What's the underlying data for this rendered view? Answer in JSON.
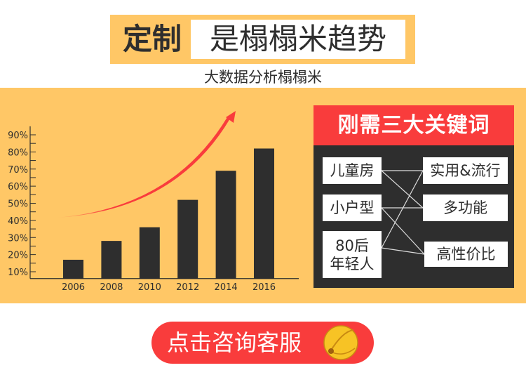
{
  "header": {
    "title_bold": "定制",
    "title_main": "是榻榻米趋势",
    "subtitle": "大数据分析榻榻米"
  },
  "chart_data": {
    "type": "bar",
    "categories": [
      "2006",
      "2008",
      "2010",
      "2012",
      "2014",
      "2016"
    ],
    "values": [
      17,
      28,
      36,
      52,
      69,
      82
    ],
    "y_ticks": [
      "10%",
      "20%",
      "30%",
      "40%",
      "50%",
      "60%",
      "70%",
      "80%",
      "90%"
    ],
    "ylim": [
      6,
      95
    ],
    "grid": false,
    "bar_color": "#2e2e2e",
    "trend_arrow_color": "#F93C3C"
  },
  "keywords_panel": {
    "title": "刚需三大关键词",
    "left": [
      "儿童房",
      "小户型",
      "80后\n年轻人"
    ],
    "right": [
      "实用&流行",
      "多功能",
      "高性价比"
    ],
    "links": [
      [
        0,
        0
      ],
      [
        0,
        1
      ],
      [
        1,
        1
      ],
      [
        1,
        2
      ],
      [
        2,
        0
      ],
      [
        2,
        2
      ]
    ]
  },
  "cta": {
    "label": "点击咨询客服",
    "icon": "bell-icon"
  },
  "colors": {
    "yellow": "#FFC766",
    "red": "#F93C3C",
    "dark": "#2e2e2e"
  }
}
